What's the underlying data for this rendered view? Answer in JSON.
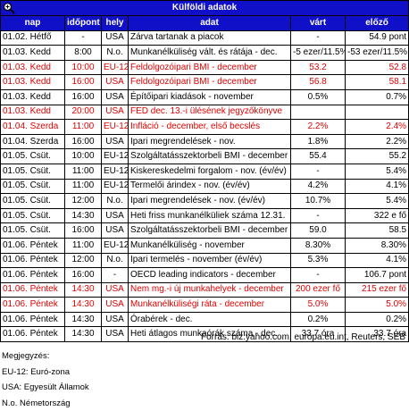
{
  "table": {
    "title": "Külföldi adatok",
    "columns": [
      "nap",
      "időpont",
      "hely",
      "adat",
      "várt",
      "előző"
    ],
    "rows": [
      {
        "cells": [
          "01.02. Hétfő",
          "-",
          "USA",
          "Zárva tartanak a piacok",
          "-",
          "54.9 pont"
        ],
        "highlight": false
      },
      {
        "cells": [
          "01.03. Kedd",
          "8:00",
          "N.o.",
          "Munkanélküliség vált. és rátája - dec.",
          "-5 ezer/11.5%",
          "-53 ezer/11.5%"
        ],
        "highlight": false
      },
      {
        "cells": [
          "01.03. Kedd",
          "10:00",
          "EU-12",
          "Feldolgozóipari BMI - december",
          "53.2",
          "52.8"
        ],
        "highlight": true
      },
      {
        "cells": [
          "01.03. Kedd",
          "16:00",
          "USA",
          "Feldolgozóipari BMI - december",
          "56.8",
          "58.1"
        ],
        "highlight": true
      },
      {
        "cells": [
          "01.03. Kedd",
          "16:00",
          "USA",
          "Építőipari kiadások - november",
          "0.5%",
          "0.7%"
        ],
        "highlight": false
      },
      {
        "cells": [
          "01.03. Kedd",
          "20:00",
          "USA",
          "FED dec. 13.-i ülésének jegyzőkönyve",
          null,
          null
        ],
        "highlight": true
      },
      {
        "cells": [
          "01.04. Szerda",
          "11:00",
          "EU-12",
          "Infláció - december, első becslés",
          "2.2%",
          "2.4%"
        ],
        "highlight": true
      },
      {
        "cells": [
          "01.04. Szerda",
          "16:00",
          "USA",
          "Ipari megrendelések - nov.",
          "1.8%",
          "2.2%"
        ],
        "highlight": false
      },
      {
        "cells": [
          "01.05. Csüt.",
          "10:00",
          "EU-12",
          "Szolgáltatásszektorbeli BMI - december",
          "55.4",
          "55.2"
        ],
        "highlight": false
      },
      {
        "cells": [
          "01.05. Csüt.",
          "11:00",
          "EU-12",
          "Kiskereskedelmi forgalom - nov. (év/év)",
          "-",
          "5.4%"
        ],
        "highlight": false
      },
      {
        "cells": [
          "01.05. Csüt.",
          "11:00",
          "EU-12",
          "Termelői árindex - nov. (év/év)",
          "4.2%",
          "4.1%"
        ],
        "highlight": false
      },
      {
        "cells": [
          "01.05. Csüt.",
          "12:00",
          "N.o.",
          "Ipari megrendelések - nov. (év/év)",
          "10.7%",
          "5.4%"
        ],
        "highlight": false
      },
      {
        "cells": [
          "01.05. Csüt.",
          "14:30",
          "USA",
          "Heti friss munkanélküliek száma 12.31.",
          "-",
          "322 e fő"
        ],
        "highlight": false
      },
      {
        "cells": [
          "01.05. Csüt.",
          "16:00",
          "USA",
          "Szolgáltatásszektorbeli BMI - december",
          "59.0",
          "58.5"
        ],
        "highlight": false
      },
      {
        "cells": [
          "01.06. Péntek",
          "11:00",
          "EU-12",
          "Munkanélküliség - november",
          "8.30%",
          "8.30%"
        ],
        "highlight": false
      },
      {
        "cells": [
          "01.06. Péntek",
          "12:00",
          "N.o.",
          "Ipari termelés - november (év/év)",
          "5.3%",
          "4.1%"
        ],
        "highlight": false
      },
      {
        "cells": [
          "01.06. Péntek",
          "16:00",
          "-",
          "OECD leading indicators - december",
          "-",
          "106.7 pont"
        ],
        "highlight": false
      },
      {
        "cells": [
          "01.06. Péntek",
          "14:30",
          "USA",
          "Nem mg.-i új munkahelyek - december",
          "200 ezer fő",
          "215 ezer fő"
        ],
        "highlight": true
      },
      {
        "cells": [
          "01.06. Péntek",
          "14:30",
          "USA",
          "Munkanélküliségi ráta - december",
          "5.0%",
          "5.0%"
        ],
        "highlight": true
      },
      {
        "cells": [
          "01.06. Péntek",
          "14:30",
          "USA",
          "Órabérek - dec.",
          "0.2%",
          "0.2%"
        ],
        "highlight": false
      },
      {
        "cells": [
          "01.06. Péntek",
          "14:30",
          "USA",
          "Heti átlagos munkaórák száma - dec.",
          "33.7 óra",
          "33.7 óra"
        ],
        "highlight": false
      }
    ]
  },
  "source": "Forrás: biz.yahoo.com, europa.eu.int, Reuters, SEB",
  "notes": {
    "title": "Megjegyzés:",
    "items": [
      "EU-12: Euró-zona",
      "USA: Egyesült Államok",
      "N.o. Németország"
    ]
  }
}
